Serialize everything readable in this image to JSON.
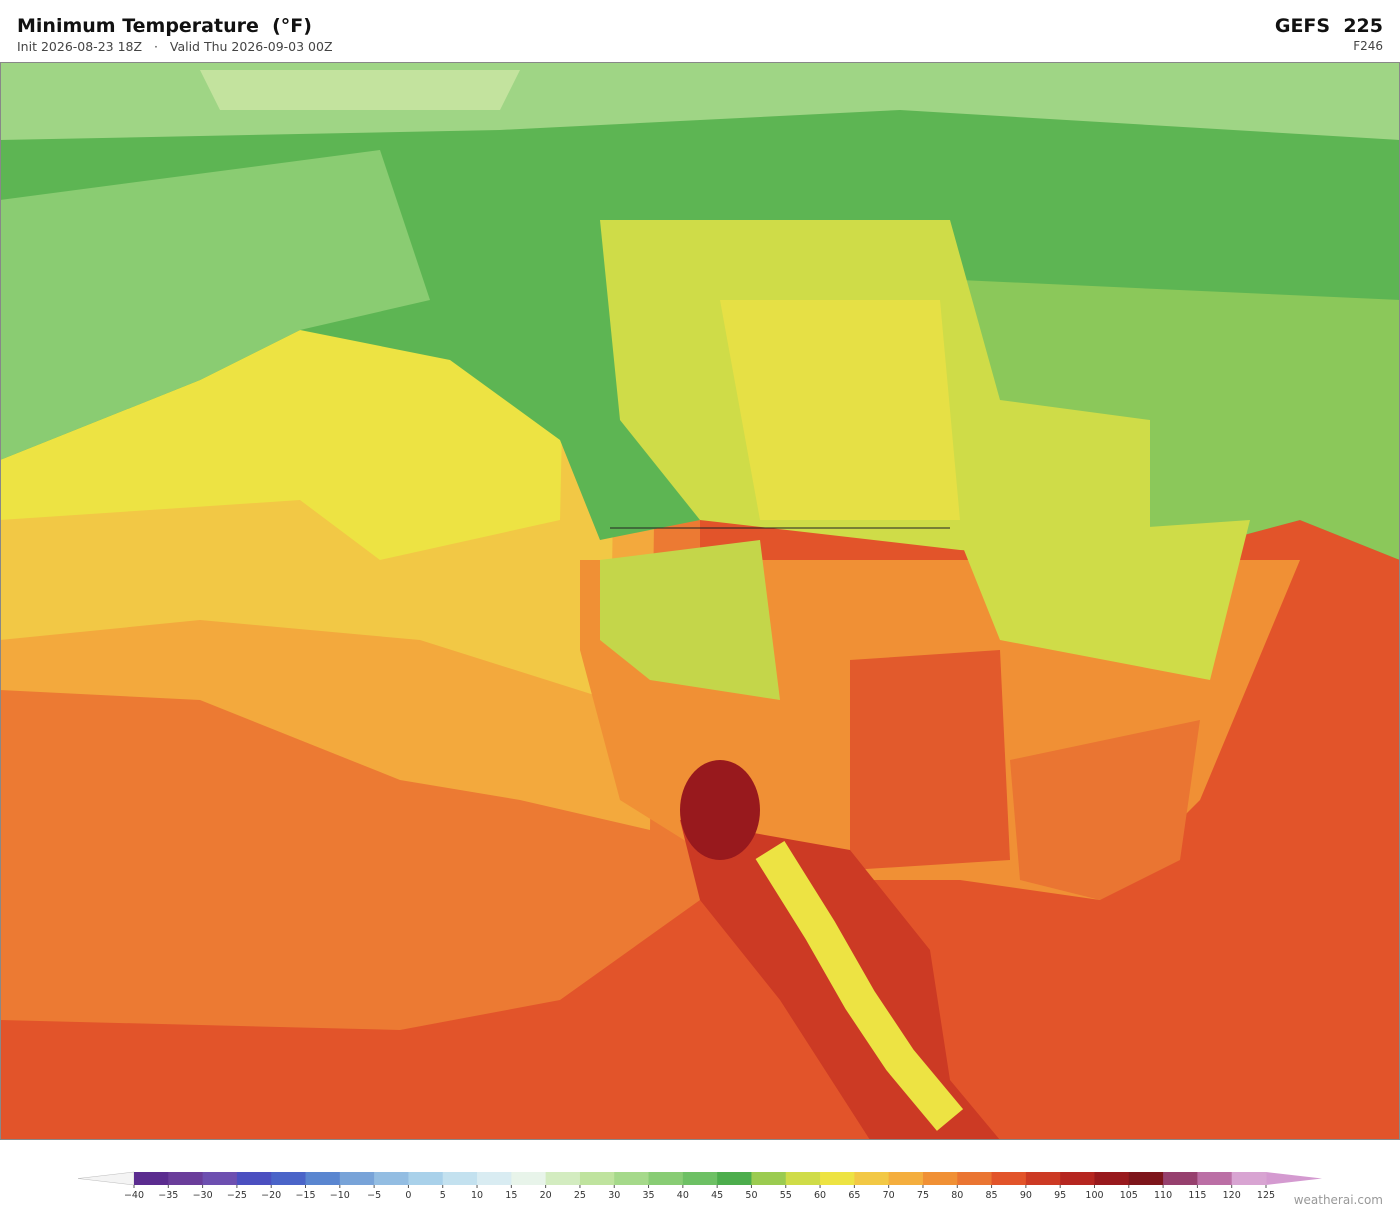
{
  "header": {
    "title": "Minimum Temperature  (°F)",
    "init": "Init 2026-08-23 18Z",
    "separator": "·",
    "valid": "Valid Thu 2026-09-03 00Z",
    "model": "GEFS  225",
    "forecast_hour": "F246"
  },
  "colorbar": {
    "ticks": [
      {
        "value": -40,
        "label": "−40"
      },
      {
        "value": -35,
        "label": "−35"
      },
      {
        "value": -30,
        "label": "−30"
      },
      {
        "value": -25,
        "label": "−25"
      },
      {
        "value": -20,
        "label": "−20"
      },
      {
        "value": -15,
        "label": "−15"
      },
      {
        "value": -10,
        "label": "−10"
      },
      {
        "value": -5,
        "label": "−5"
      },
      0,
      5,
      10,
      15,
      20,
      25,
      30,
      35,
      40,
      45,
      50,
      55,
      60,
      65,
      70,
      75,
      80,
      85,
      90,
      95,
      100,
      105,
      110,
      115,
      120,
      125
    ],
    "colors": [
      "#5b2c8f",
      "#6a3d9a",
      "#6d4fb0",
      "#4b4fc0",
      "#4a64c8",
      "#5a86d0",
      "#78a3d8",
      "#93bde2",
      "#a9d1ea",
      "#c3e1ef",
      "#d9ecf2",
      "#e8f4ea",
      "#d3ecc0",
      "#bfe39e",
      "#a5d98a",
      "#88cc74",
      "#6dc064",
      "#4cad4c",
      "#9bcb50",
      "#cfdc48",
      "#ede343",
      "#f2c845",
      "#f4ae3e",
      "#f09035",
      "#ea7532",
      "#e2542a",
      "#cc3a24",
      "#b52620",
      "#98191d",
      "#7d151b",
      "#96406e",
      "#bb6fa5",
      "#d8a4d2"
    ],
    "under_color": "#f4f4f4",
    "over_color": "#d49ad0"
  },
  "credit": "weatherai.com"
}
